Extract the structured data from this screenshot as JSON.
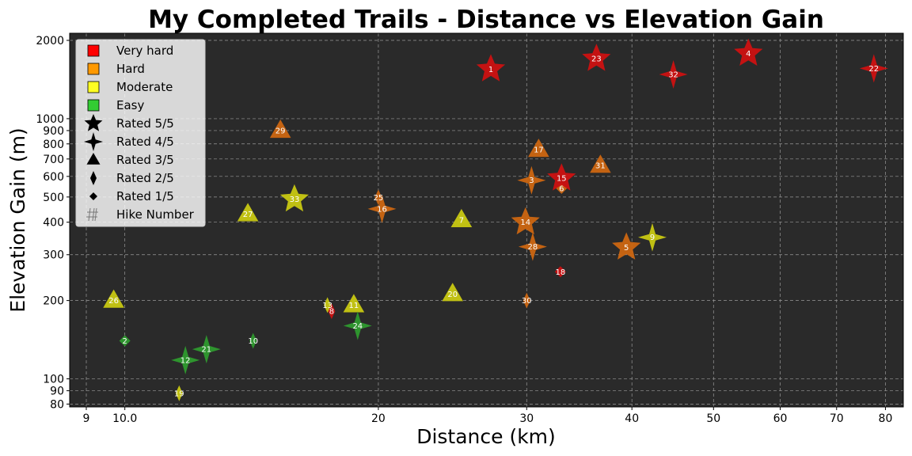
{
  "chart_data": {
    "type": "scatter",
    "title": "My Completed Trails - Distance vs Elevation Gain",
    "xlabel": "Distance (km)",
    "ylabel": "Elevation Gain (m)",
    "x_scale": "log",
    "y_scale": "log",
    "xlim": [
      8.6,
      84
    ],
    "ylim": [
      78,
      2130
    ],
    "x_ticks": [
      {
        "value": 9,
        "label": "9"
      },
      {
        "value": 10,
        "label": "10.0"
      },
      {
        "value": 20,
        "label": "20"
      },
      {
        "value": 30,
        "label": "30"
      },
      {
        "value": 40,
        "label": "40"
      },
      {
        "value": 50,
        "label": "50"
      },
      {
        "value": 60,
        "label": "60"
      },
      {
        "value": 70,
        "label": "70"
      },
      {
        "value": 80,
        "label": "80"
      }
    ],
    "y_ticks": [
      {
        "value": 80,
        "label": "80"
      },
      {
        "value": 90,
        "label": "90"
      },
      {
        "value": 100,
        "label": "100"
      },
      {
        "value": 200,
        "label": "200"
      },
      {
        "value": 300,
        "label": "300"
      },
      {
        "value": 400,
        "label": "400"
      },
      {
        "value": 500,
        "label": "500"
      },
      {
        "value": 600,
        "label": "600"
      },
      {
        "value": 700,
        "label": "700"
      },
      {
        "value": 800,
        "label": "800"
      },
      {
        "value": 900,
        "label": "900"
      },
      {
        "value": 1000,
        "label": "1000"
      },
      {
        "value": 2000,
        "label": "2000"
      }
    ],
    "grid": true,
    "background": "#2a2a2a",
    "legend_position": "top-left",
    "difficulty_colors": {
      "Very hard": "#cc1111",
      "Hard": "#cc6611",
      "Moderate": "#c8c812",
      "Easy": "#2e9a2e"
    },
    "legend": [
      {
        "kind": "color",
        "label": "Very hard",
        "color": "#ff0000"
      },
      {
        "kind": "color",
        "label": "Hard",
        "color": "#ff9900"
      },
      {
        "kind": "color",
        "label": "Moderate",
        "color": "#ffff22"
      },
      {
        "kind": "color",
        "label": "Easy",
        "color": "#33cc33"
      },
      {
        "kind": "rating",
        "label": "Rated 5/5",
        "rating": 5
      },
      {
        "kind": "rating",
        "label": "Rated 4/5",
        "rating": 4
      },
      {
        "kind": "rating",
        "label": "Rated 3/5",
        "rating": 3
      },
      {
        "kind": "rating",
        "label": "Rated 2/5",
        "rating": 2
      },
      {
        "kind": "rating",
        "label": "Rated 1/5",
        "rating": 1
      },
      {
        "kind": "number",
        "label": "Hike Number"
      }
    ],
    "points": [
      {
        "hike": 1,
        "distance": 27.2,
        "elevation": 1550,
        "difficulty": "Very hard",
        "rating": 5
      },
      {
        "hike": 2,
        "distance": 10.0,
        "elevation": 140,
        "difficulty": "Easy",
        "rating": 1
      },
      {
        "hike": 3,
        "distance": 30.4,
        "elevation": 580,
        "difficulty": "Hard",
        "rating": 4
      },
      {
        "hike": 4,
        "distance": 55.0,
        "elevation": 1780,
        "difficulty": "Very hard",
        "rating": 5
      },
      {
        "hike": 5,
        "distance": 39.4,
        "elevation": 320,
        "difficulty": "Hard",
        "rating": 5
      },
      {
        "hike": 6,
        "distance": 33.0,
        "elevation": 540,
        "difficulty": "Hard",
        "rating": 1
      },
      {
        "hike": 7,
        "distance": 25.1,
        "elevation": 408,
        "difficulty": "Moderate",
        "rating": 3
      },
      {
        "hike": 8,
        "distance": 17.6,
        "elevation": 182,
        "difficulty": "Very hard",
        "rating": 2
      },
      {
        "hike": 9,
        "distance": 42.3,
        "elevation": 350,
        "difficulty": "Moderate",
        "rating": 4
      },
      {
        "hike": 10,
        "distance": 14.2,
        "elevation": 140,
        "difficulty": "Easy",
        "rating": 2
      },
      {
        "hike": 11,
        "distance": 18.7,
        "elevation": 192,
        "difficulty": "Moderate",
        "rating": 3
      },
      {
        "hike": 12,
        "distance": 11.8,
        "elevation": 118,
        "difficulty": "Easy",
        "rating": 4
      },
      {
        "hike": 13,
        "distance": 17.4,
        "elevation": 192,
        "difficulty": "Moderate",
        "rating": 2
      },
      {
        "hike": 14,
        "distance": 29.9,
        "elevation": 400,
        "difficulty": "Hard",
        "rating": 5
      },
      {
        "hike": 15,
        "distance": 33.0,
        "elevation": 590,
        "difficulty": "Very hard",
        "rating": 5
      },
      {
        "hike": 16,
        "distance": 20.2,
        "elevation": 450,
        "difficulty": "Hard",
        "rating": 4
      },
      {
        "hike": 17,
        "distance": 31.0,
        "elevation": 760,
        "difficulty": "Hard",
        "rating": 3
      },
      {
        "hike": 18,
        "distance": 32.9,
        "elevation": 258,
        "difficulty": "Very hard",
        "rating": 1
      },
      {
        "hike": 19,
        "distance": 11.6,
        "elevation": 88,
        "difficulty": "Moderate",
        "rating": 2
      },
      {
        "hike": 20,
        "distance": 24.5,
        "elevation": 212,
        "difficulty": "Moderate",
        "rating": 3
      },
      {
        "hike": 21,
        "distance": 12.5,
        "elevation": 130,
        "difficulty": "Easy",
        "rating": 4
      },
      {
        "hike": 22,
        "distance": 77.5,
        "elevation": 1560,
        "difficulty": "Very hard",
        "rating": 4
      },
      {
        "hike": 23,
        "distance": 36.3,
        "elevation": 1700,
        "difficulty": "Very hard",
        "rating": 5
      },
      {
        "hike": 24,
        "distance": 18.9,
        "elevation": 160,
        "difficulty": "Easy",
        "rating": 4
      },
      {
        "hike": 25,
        "distance": 20.0,
        "elevation": 498,
        "difficulty": "Hard",
        "rating": 2
      },
      {
        "hike": 26,
        "distance": 9.7,
        "elevation": 200,
        "difficulty": "Moderate",
        "rating": 3
      },
      {
        "hike": 27,
        "distance": 14.0,
        "elevation": 430,
        "difficulty": "Moderate",
        "rating": 3
      },
      {
        "hike": 28,
        "distance": 30.5,
        "elevation": 322,
        "difficulty": "Hard",
        "rating": 4
      },
      {
        "hike": 29,
        "distance": 15.3,
        "elevation": 900,
        "difficulty": "Hard",
        "rating": 3
      },
      {
        "hike": 30,
        "distance": 30.0,
        "elevation": 200,
        "difficulty": "Hard",
        "rating": 2
      },
      {
        "hike": 31,
        "distance": 36.7,
        "elevation": 660,
        "difficulty": "Hard",
        "rating": 3
      },
      {
        "hike": 32,
        "distance": 44.8,
        "elevation": 1480,
        "difficulty": "Very hard",
        "rating": 4
      },
      {
        "hike": 33,
        "distance": 15.9,
        "elevation": 490,
        "difficulty": "Moderate",
        "rating": 5
      }
    ]
  }
}
